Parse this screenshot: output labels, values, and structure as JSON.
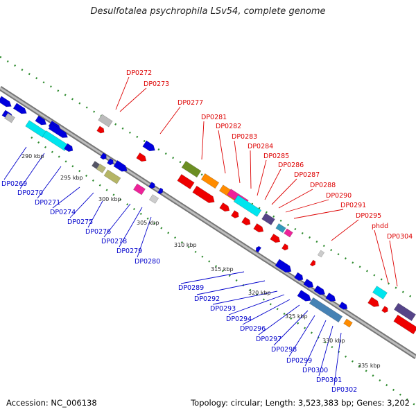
{
  "title": "Desulfotalea psychrophila LSv54, complete genome",
  "footer": {
    "accession": "Accession: NC_006138",
    "topology": "Topology: circular; Length: 3,523,383 bp; Genes: 3,202"
  },
  "colors": {
    "label_forward": "#dd0000",
    "label_reverse": "#0000cc",
    "backbone": "#888888",
    "ticks": "#228b22"
  },
  "scale_labels": [
    "290 kbp",
    "295 kbp",
    "300 kbp",
    "305 kbp",
    "310 kbp",
    "315 kbp",
    "320 kbp",
    "325 kbp",
    "330 kbp",
    "335 kbp"
  ],
  "forward_genes": [
    "DP0272",
    "DP0273",
    "DP0277",
    "DP0281",
    "DP0282",
    "DP0283",
    "DP0284",
    "DP0285",
    "DP0286",
    "DP0287",
    "DP0288",
    "DP0290",
    "DP0291",
    "DP0295",
    "phdd",
    "DP0304"
  ],
  "reverse_genes": [
    "DP0269",
    "DP0270",
    "DP0271",
    "DP0274",
    "DP0275",
    "DP0276",
    "DP0278",
    "DP0279",
    "DP0280",
    "DP0289",
    "DP0292",
    "DP0293",
    "DP0294",
    "DP0296",
    "DP0297",
    "DP0298",
    "DP0299",
    "DP0300",
    "DP0301",
    "DP0302"
  ]
}
